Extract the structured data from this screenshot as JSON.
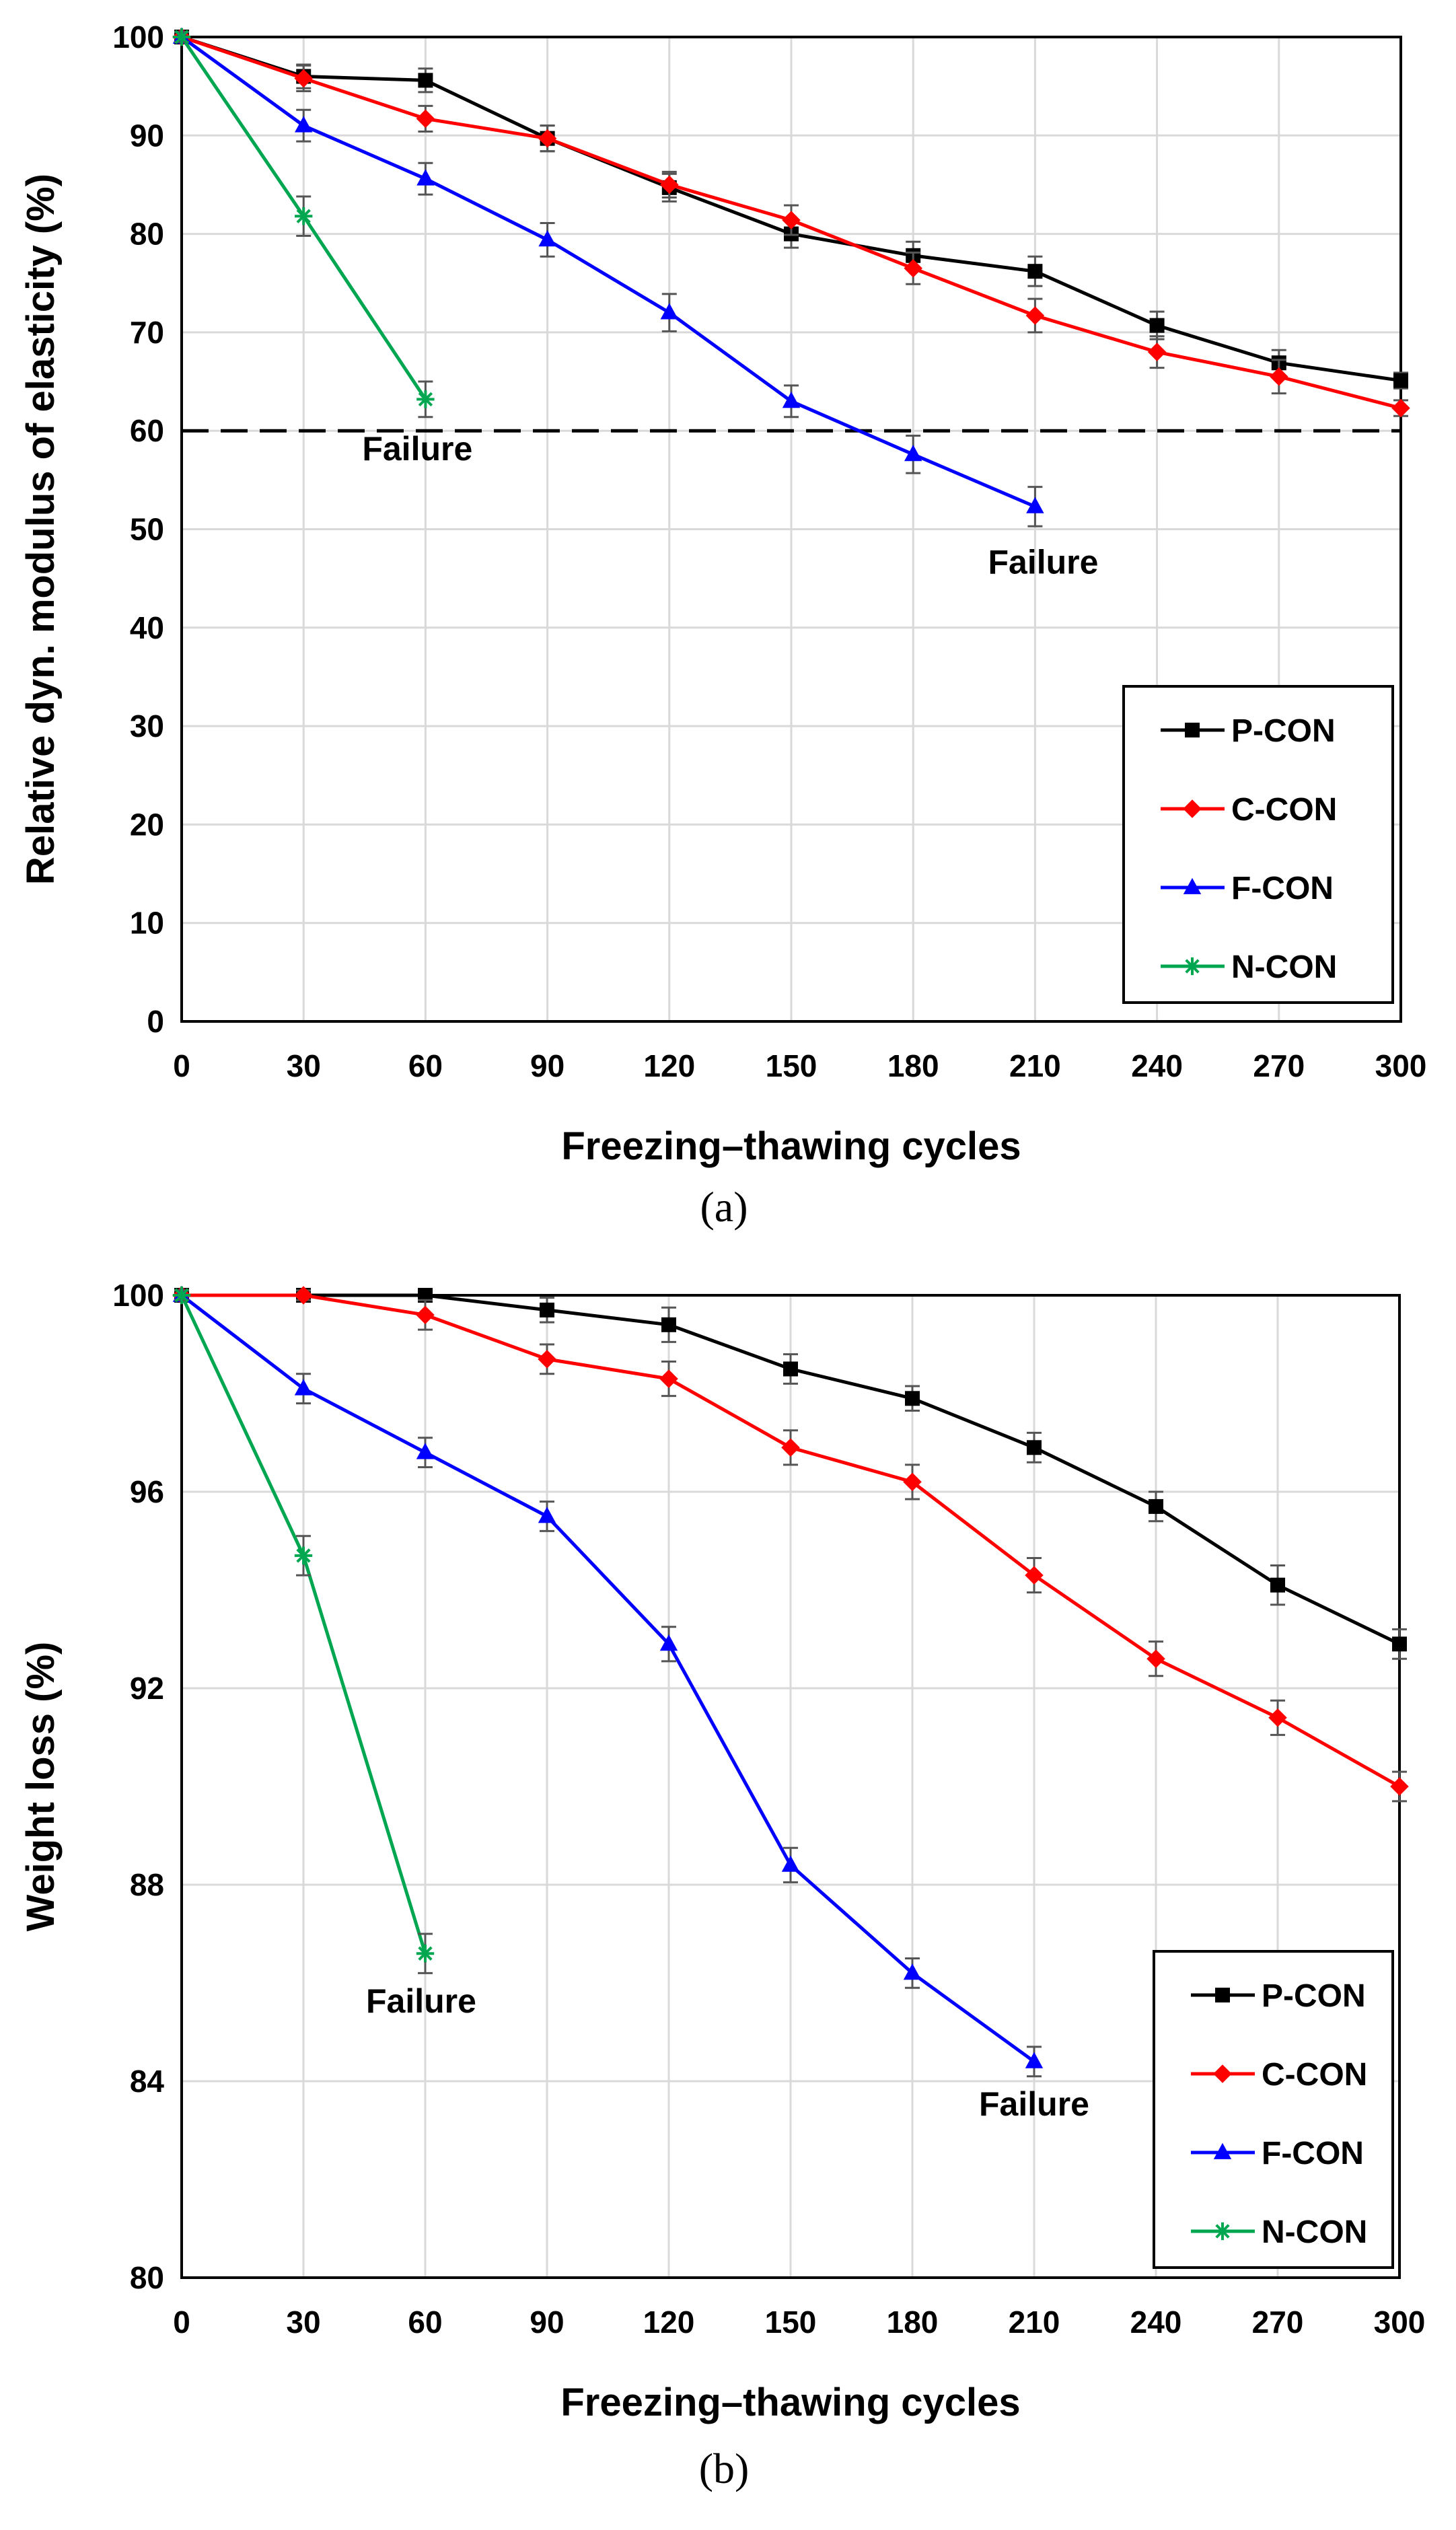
{
  "chart_data": [
    {
      "type": "line",
      "panel_label": "(a)",
      "xlabel": "Freezing–thawing cycles",
      "ylabel": "Relative dyn. modulus of elasticity (%)",
      "xlim": [
        0,
        300
      ],
      "ylim": [
        0,
        100
      ],
      "xticks": [
        0,
        30,
        60,
        90,
        120,
        150,
        180,
        210,
        240,
        270,
        300
      ],
      "yticks": [
        0,
        10,
        20,
        30,
        40,
        50,
        60,
        70,
        80,
        90,
        100
      ],
      "grid": true,
      "legend_position": "bottom-right",
      "threshold": {
        "y": 60,
        "style": "dashed"
      },
      "annotations": [
        {
          "text": "Failure",
          "x": 58,
          "y": 57
        },
        {
          "text": "Failure",
          "x": 212,
          "y": 45.5
        }
      ],
      "series": [
        {
          "name": "P-CON",
          "color": "#000000",
          "marker": "square",
          "x": [
            0,
            30,
            60,
            90,
            120,
            150,
            180,
            210,
            240,
            270,
            300
          ],
          "values": [
            100,
            96,
            95.6,
            89.7,
            84.7,
            80,
            77.8,
            76.2,
            70.7,
            66.9,
            65.1
          ],
          "errors": [
            0.5,
            1.2,
            1.2,
            1.3,
            1.4,
            1.4,
            1.4,
            1.5,
            1.4,
            1.3,
            0.8
          ]
        },
        {
          "name": "C-CON",
          "color": "#ff0000",
          "marker": "diamond",
          "x": [
            0,
            30,
            60,
            90,
            120,
            150,
            180,
            210,
            240,
            270,
            300
          ],
          "values": [
            100,
            95.8,
            91.7,
            89.7,
            85,
            81.4,
            76.5,
            71.7,
            68,
            65.5,
            62.3
          ],
          "errors": [
            0.5,
            1.3,
            1.3,
            1.3,
            1.3,
            1.5,
            1.6,
            1.7,
            1.6,
            1.7,
            0.8
          ]
        },
        {
          "name": "F-CON",
          "color": "#0000ff",
          "marker": "triangle",
          "x": [
            0,
            30,
            60,
            90,
            120,
            150,
            180,
            210
          ],
          "values": [
            100,
            91,
            85.6,
            79.4,
            72,
            63,
            57.6,
            52.3
          ],
          "errors": [
            0.5,
            1.6,
            1.6,
            1.7,
            1.9,
            1.6,
            1.9,
            2.0
          ]
        },
        {
          "name": "N-CON",
          "color": "#00a650",
          "marker": "asterisk",
          "x": [
            0,
            30,
            60
          ],
          "values": [
            100,
            81.8,
            63.2
          ],
          "errors": [
            0.5,
            2.0,
            1.8
          ]
        }
      ]
    },
    {
      "type": "line",
      "panel_label": "(b)",
      "xlabel": "Freezing–thawing cycles",
      "ylabel": "Weight loss (%)",
      "xlim": [
        0,
        300
      ],
      "ylim": [
        80,
        100
      ],
      "xticks": [
        0,
        30,
        60,
        90,
        120,
        150,
        180,
        210,
        240,
        270,
        300
      ],
      "yticks": [
        80,
        84,
        88,
        92,
        96,
        100
      ],
      "grid": true,
      "legend_position": "bottom-right",
      "annotations": [
        {
          "text": "Failure",
          "x": 59,
          "y": 85.4
        },
        {
          "text": "Failure",
          "x": 210,
          "y": 83.3
        }
      ],
      "series": [
        {
          "name": "P-CON",
          "color": "#000000",
          "marker": "square",
          "x": [
            0,
            30,
            60,
            90,
            120,
            150,
            180,
            210,
            240,
            270,
            300
          ],
          "values": [
            100,
            100,
            100,
            99.7,
            99.4,
            98.5,
            97.9,
            96.9,
            95.7,
            94.1,
            92.9
          ],
          "errors": [
            0.1,
            0.1,
            0.1,
            0.25,
            0.35,
            0.3,
            0.25,
            0.3,
            0.3,
            0.4,
            0.3
          ]
        },
        {
          "name": "C-CON",
          "color": "#ff0000",
          "marker": "diamond",
          "x": [
            0,
            30,
            60,
            90,
            120,
            150,
            180,
            210,
            240,
            270,
            300
          ],
          "values": [
            100,
            100,
            99.6,
            98.7,
            98.3,
            96.9,
            96.2,
            94.3,
            92.6,
            91.4,
            90
          ],
          "errors": [
            0.1,
            0.1,
            0.3,
            0.3,
            0.35,
            0.35,
            0.35,
            0.35,
            0.35,
            0.35,
            0.3
          ]
        },
        {
          "name": "F-CON",
          "color": "#0000ff",
          "marker": "triangle",
          "x": [
            0,
            30,
            60,
            90,
            120,
            150,
            180,
            210
          ],
          "values": [
            100,
            98.1,
            96.8,
            95.5,
            92.9,
            88.4,
            86.2,
            84.4
          ],
          "errors": [
            0.1,
            0.3,
            0.3,
            0.3,
            0.35,
            0.35,
            0.3,
            0.3
          ]
        },
        {
          "name": "N-CON",
          "color": "#00a650",
          "marker": "asterisk",
          "x": [
            0,
            30,
            60
          ],
          "values": [
            100,
            94.7,
            86.6
          ],
          "errors": [
            0.1,
            0.4,
            0.4
          ]
        }
      ]
    }
  ]
}
